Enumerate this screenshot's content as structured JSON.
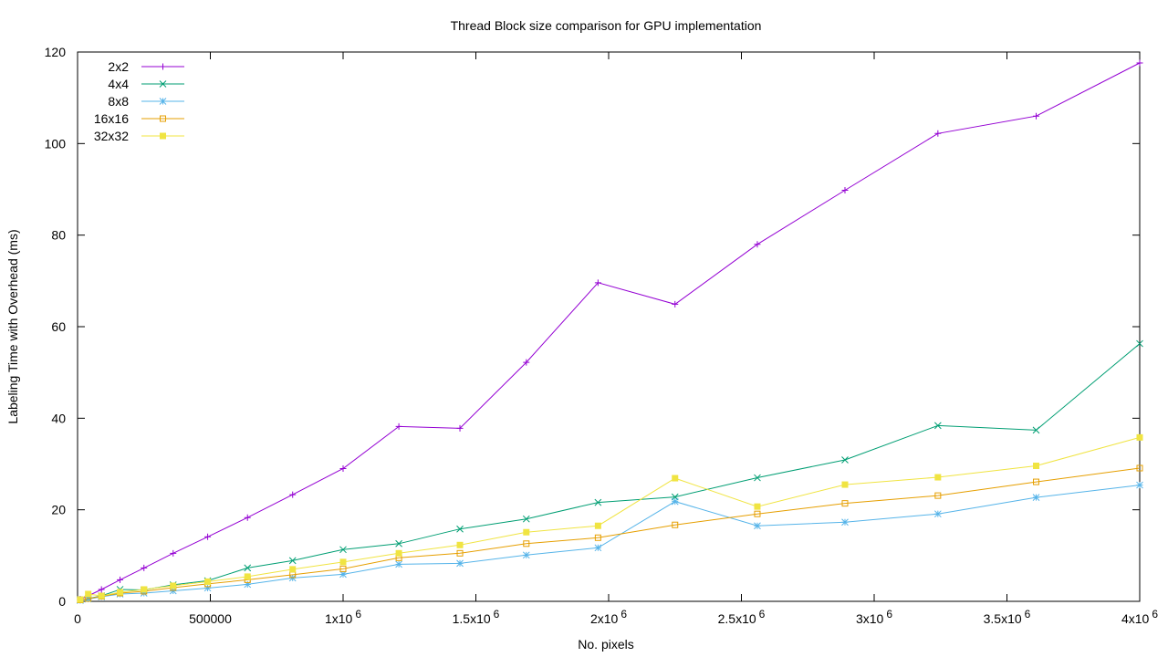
{
  "chart_data": {
    "type": "line",
    "title": "Thread Block size comparison for GPU implementation",
    "xlabel": "No. pixels",
    "ylabel": "Labeling Time with Overhead (ms)",
    "xlim": [
      0,
      4000000
    ],
    "ylim": [
      0,
      120
    ],
    "grid": false,
    "legend_position": "top-left",
    "x_ticks": [
      {
        "value": 0,
        "label": "0"
      },
      {
        "value": 500000,
        "label": "500000"
      },
      {
        "value": 1000000,
        "base": "1x10",
        "exp": "6"
      },
      {
        "value": 1500000,
        "base": "1.5x10",
        "exp": "6"
      },
      {
        "value": 2000000,
        "base": "2x10",
        "exp": "6"
      },
      {
        "value": 2500000,
        "base": "2.5x10",
        "exp": "6"
      },
      {
        "value": 3000000,
        "base": "3x10",
        "exp": "6"
      },
      {
        "value": 3500000,
        "base": "3.5x10",
        "exp": "6"
      },
      {
        "value": 4000000,
        "base": "4x10",
        "exp": "6"
      }
    ],
    "y_ticks": [
      "0",
      "20",
      "40",
      "60",
      "80",
      "100",
      "120"
    ],
    "x": [
      10000,
      40000,
      90000,
      160000,
      250000,
      360000,
      490000,
      640000,
      810000,
      1000000,
      1210000,
      1440000,
      1690000,
      1960000,
      2250000,
      2560000,
      2890000,
      3240000,
      3610000,
      4000000
    ],
    "series": [
      {
        "name": "2x2",
        "color": "#9400d3",
        "marker": "plus",
        "values": [
          0.5,
          1.2,
          2.6,
          4.7,
          7.3,
          10.5,
          14.1,
          18.3,
          23.3,
          29.0,
          38.2,
          37.8,
          52.2,
          69.6,
          64.9,
          78.0,
          89.8,
          102.2,
          106.0,
          117.6
        ]
      },
      {
        "name": "4x4",
        "color": "#009e73",
        "marker": "cross",
        "values": [
          0.3,
          0.6,
          1.2,
          2.6,
          2.5,
          3.6,
          4.5,
          7.3,
          8.9,
          11.3,
          12.6,
          15.8,
          18.0,
          21.6,
          22.8,
          27.0,
          30.9,
          38.4,
          37.4,
          56.3
        ]
      },
      {
        "name": "8x8",
        "color": "#56b4e9",
        "marker": "star",
        "values": [
          0.2,
          0.5,
          1.0,
          1.6,
          1.8,
          2.3,
          2.9,
          3.7,
          5.1,
          5.9,
          8.1,
          8.3,
          10.1,
          11.7,
          21.8,
          16.5,
          17.3,
          19.1,
          22.7,
          25.4
        ]
      },
      {
        "name": "16x16",
        "color": "#e69f00",
        "marker": "open-square",
        "values": [
          0.3,
          0.6,
          1.1,
          1.8,
          2.2,
          3.0,
          3.8,
          4.7,
          5.8,
          7.1,
          9.5,
          10.5,
          12.6,
          13.9,
          16.7,
          19.1,
          21.4,
          23.1,
          26.1,
          29.1
        ]
      },
      {
        "name": "32x32",
        "color": "#f0e442",
        "marker": "filled-square",
        "values": [
          0.4,
          1.6,
          1.2,
          2.0,
          2.6,
          3.4,
          4.3,
          5.4,
          7.0,
          8.6,
          10.5,
          12.3,
          15.1,
          16.5,
          26.9,
          20.7,
          25.5,
          27.1,
          29.6,
          35.8
        ]
      }
    ]
  }
}
